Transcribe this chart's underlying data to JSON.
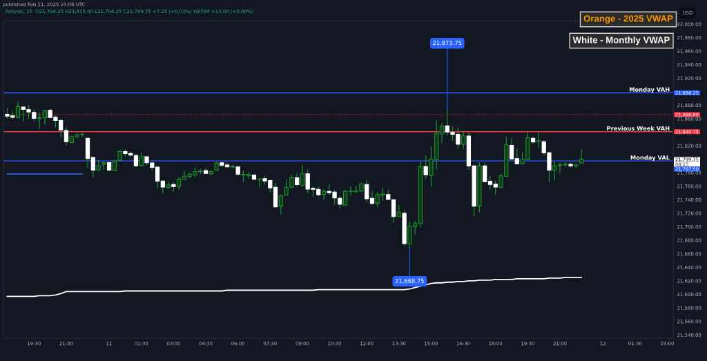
{
  "chart_data": {
    "type": "candlestick",
    "categories": [
      null,
      null,
      null,
      null,
      null,
      "19:30",
      null,
      null,
      null,
      null,
      null,
      "21:00",
      null,
      null,
      null,
      null,
      null,
      null,
      null,
      "11",
      null,
      null,
      null,
      null,
      null,
      "01:30",
      null,
      null,
      null,
      null,
      null,
      "03:00",
      null,
      null,
      null,
      null,
      null,
      "04:30",
      null,
      null,
      null,
      null,
      null,
      "06:00",
      null,
      null,
      null,
      null,
      null,
      "07:30",
      null,
      null,
      null,
      null,
      null,
      "09:00",
      null,
      null,
      null,
      null,
      null,
      "10:30",
      null,
      null,
      null,
      null,
      null,
      "12:00",
      null,
      null,
      null,
      null,
      null,
      "13:30",
      null,
      null,
      null,
      null,
      null,
      "15:00",
      null,
      null,
      null,
      null,
      null,
      "16:30",
      null,
      null,
      null,
      null,
      null,
      "18:00",
      null,
      null,
      null,
      null,
      null,
      "19:30",
      null,
      null,
      null,
      null,
      null,
      "21:00",
      null,
      null,
      null,
      null,
      null,
      null,
      null,
      "12",
      null,
      null,
      null,
      null,
      null,
      "01:30",
      null,
      null,
      null,
      null,
      null,
      "03:00"
    ],
    "ohlc": [
      [
        21866.6,
        21876.1,
        21860.1,
        21863.8
      ],
      [
        21864.2,
        21871.0,
        21859.0,
        21862.1
      ],
      [
        21861.8,
        21885.4,
        21861.0,
        21877.9
      ],
      [
        21877.2,
        21877.8,
        21855.6,
        21873.8
      ],
      [
        21873.4,
        21880.6,
        21860.1,
        21870.0
      ],
      [
        21869.3,
        21873.8,
        21856.3,
        21860.4
      ],
      [
        21860.4,
        21869.3,
        21844.7,
        21861.4
      ],
      [
        21861.4,
        21872.7,
        21851.5,
        21872.0
      ],
      [
        21872.4,
        21874.4,
        21861.0,
        21861.8
      ],
      [
        21862.1,
        21864.9,
        21847.1,
        21857.3
      ],
      [
        21857.3,
        21860.1,
        21832.4,
        21843.0
      ],
      [
        21842.6,
        21847.1,
        21820.7,
        21825.9
      ],
      [
        21824.8,
        21835.1,
        21823.8,
        21833.4
      ],
      [
        21833.1,
        21838.5,
        21831.0,
        21836.1
      ],
      [
        21836.5,
        21839.2,
        21833.4,
        21837.0
      ],
      [
        21831.0,
        21831.5,
        21787.2,
        21800.9
      ],
      [
        21802.6,
        21803.0,
        21772.9,
        21783.8
      ],
      [
        21784.2,
        21799.2,
        21783.0,
        21790.0
      ],
      [
        21792.4,
        21797.5,
        21784.5,
        21794.7
      ],
      [
        21795.1,
        21795.8,
        21782.1,
        21783.8
      ],
      [
        21783.1,
        21799.9,
        21783.0,
        21797.5
      ],
      [
        21798.2,
        21812.2,
        21797.0,
        21811.5
      ],
      [
        21811.2,
        21815.3,
        21804.3,
        21808.4
      ],
      [
        21808.4,
        21811.2,
        21802.6,
        21806.0
      ],
      [
        21805.4,
        21807.8,
        21788.3,
        21790.3
      ],
      [
        21790.3,
        21809.5,
        21789.0,
        21804.0
      ],
      [
        21803.6,
        21804.3,
        21790.7,
        21794.8
      ],
      [
        21794.4,
        21795.8,
        21783.1,
        21787.9
      ],
      [
        21788.3,
        21788.9,
        21756.5,
        21767.4
      ],
      [
        21767.7,
        21768.4,
        21749.6,
        21758.8
      ],
      [
        21758.1,
        21766.4,
        21756.5,
        21761.9
      ],
      [
        21762.6,
        21765.7,
        21752.0,
        21759.5
      ],
      [
        21759.9,
        21773.9,
        21754.7,
        21770.1
      ],
      [
        21769.8,
        21782.8,
        21769.1,
        21774.9
      ],
      [
        21774.2,
        21779.4,
        21772.5,
        21777.7
      ],
      [
        21776.6,
        21787.6,
        21773.2,
        21781.8
      ],
      [
        21781.8,
        21785.5,
        21778.0,
        21782.5
      ],
      [
        21783.1,
        21787.2,
        21778.7,
        21779.0
      ],
      [
        21778.3,
        21783.5,
        21777.0,
        21781.8
      ],
      [
        21783.5,
        21795.8,
        21783.0,
        21794.1
      ],
      [
        21794.7,
        21795.4,
        21788.3,
        21791.0
      ],
      [
        21791.4,
        21795.1,
        21787.9,
        21788.6
      ],
      [
        21788.3,
        21791.4,
        21786.6,
        21789.3
      ],
      [
        21788.6,
        21789.0,
        21776.3,
        21777.7
      ],
      [
        21776.6,
        21783.1,
        21766.0,
        21777.7
      ],
      [
        21775.3,
        21781.1,
        21771.9,
        21777.7
      ],
      [
        21776.6,
        21777.3,
        21769.8,
        21770.2
      ],
      [
        21770.2,
        21771.9,
        21758.2,
        21770.8
      ],
      [
        21771.2,
        21776.0,
        21762.3,
        21767.8
      ],
      [
        21768.4,
        21770.2,
        21750.7,
        21757.5
      ],
      [
        21758.5,
        21765.0,
        21728.4,
        21729.5
      ],
      [
        21730.8,
        21747.9,
        21718.5,
        21745.9
      ],
      [
        21746.9,
        21770.2,
        21746.9,
        21758.5
      ],
      [
        21758.5,
        21777.0,
        21756.5,
        21772.5
      ],
      [
        21772.5,
        21779.7,
        21759.2,
        21762.3
      ],
      [
        21761.6,
        21791.4,
        21759.2,
        21778.4
      ],
      [
        21778.4,
        21784.5,
        21749.6,
        21755.8
      ],
      [
        21756.8,
        21759.9,
        21743.8,
        21755.4
      ],
      [
        21755.4,
        21759.9,
        21745.2,
        21747.2
      ],
      [
        21747.9,
        21755.4,
        21739.4,
        21752.7
      ],
      [
        21752.4,
        21763.0,
        21747.6,
        21750.3
      ],
      [
        21751.3,
        21754.1,
        21732.5,
        21742.8
      ],
      [
        21742.1,
        21745.5,
        21727.4,
        21733.2
      ],
      [
        21731.8,
        21754.1,
        21731.8,
        21752.4
      ],
      [
        21752.4,
        21759.9,
        21746.2,
        21753.0
      ],
      [
        21752.4,
        21760.2,
        21749.3,
        21753.0
      ],
      [
        21753.0,
        21765.0,
        21752.0,
        21763.3
      ],
      [
        21762.6,
        21769.1,
        21736.6,
        21741.4
      ],
      [
        21742.1,
        21753.0,
        21731.8,
        21734.6
      ],
      [
        21734.9,
        21750.3,
        21728.8,
        21747.6
      ],
      [
        21746.9,
        21758.2,
        21738.3,
        21748.6
      ],
      [
        21747.6,
        21754.1,
        21740.1,
        21740.4
      ],
      [
        21740.1,
        21740.4,
        21706.2,
        21715.1
      ],
      [
        21715.1,
        21732.2,
        21714.7,
        21721.2
      ],
      [
        21719.9,
        21723.3,
        21672.0,
        21675.1
      ],
      [
        21674.4,
        21708.9,
        21668.75,
        21701.1
      ],
      [
        21700.4,
        21708.9,
        21688.4,
        21704.8
      ],
      [
        21704.8,
        21796.5,
        21700.0,
        21789.0
      ],
      [
        21789.0,
        21805.4,
        21771.2,
        21777.0
      ],
      [
        21776.0,
        21819.1,
        21759.9,
        21799.9
      ],
      [
        21799.5,
        21857.3,
        21784.5,
        21837.8
      ],
      [
        21837.5,
        21853.9,
        21823.8,
        21849.1
      ],
      [
        21849.5,
        21873.75,
        21835.1,
        21840.2
      ],
      [
        21839.6,
        21848.8,
        21827.2,
        21836.8
      ],
      [
        21836.8,
        21847.1,
        21816.3,
        21822.1
      ],
      [
        21822.1,
        21842.0,
        21814.6,
        21834.4
      ],
      [
        21834.4,
        21839.2,
        21784.5,
        21790.0
      ],
      [
        21790.0,
        21790.7,
        21715.4,
        21730.4
      ],
      [
        21730.4,
        21795.8,
        21721.6,
        21790.0
      ],
      [
        21790.0,
        21795.1,
        21766.7,
        21766.7
      ],
      [
        21767.4,
        21775.3,
        21754.7,
        21762.6
      ],
      [
        21763.0,
        21768.4,
        21746.9,
        21758.8
      ],
      [
        21758.1,
        21778.7,
        21758.1,
        21775.3
      ],
      [
        21774.6,
        21833.4,
        21774.6,
        21821.4
      ],
      [
        21820.4,
        21831.7,
        21799.9,
        21800.2
      ],
      [
        21800.9,
        21816.3,
        21792.4,
        21793.1
      ],
      [
        21793.4,
        21810.1,
        21792.4,
        21799.9
      ],
      [
        21799.5,
        21839.2,
        21799.0,
        21831.7
      ],
      [
        21831.0,
        21833.4,
        21823.1,
        21825.5
      ],
      [
        21826.6,
        21839.6,
        21816.3,
        21827.3
      ],
      [
        21825.9,
        21828.3,
        21806.0,
        21809.5
      ],
      [
        21809.5,
        21811.2,
        21765.7,
        21783.8
      ],
      [
        21783.8,
        21796.5,
        21769.1,
        21790.0
      ],
      [
        21790.7,
        21795.1,
        21778.7,
        21791.7
      ],
      [
        21791.7,
        21795.1,
        21788.9,
        21792.7
      ],
      [
        21792.4,
        21794.4,
        21787.9,
        21790.0
      ],
      [
        21789.6,
        21793.7,
        21787.2,
        21791.7
      ],
      [
        21794.25,
        21815.0,
        21794.25,
        21799.75
      ],
      null,
      null,
      null,
      null,
      null,
      null,
      null,
      null,
      null,
      null,
      null,
      null,
      null,
      null,
      null,
      null
    ],
    "series": [
      {
        "type": "line",
        "color": "#ffffff",
        "values": [
          21597,
          21597,
          21597,
          21597,
          21597,
          21597,
          21598,
          21598,
          21598,
          21599,
          21601,
          21604,
          21604,
          21604,
          21604,
          21604,
          21604,
          21604,
          21604,
          21604,
          21604,
          21604,
          21605,
          21605,
          21605,
          21605,
          21605,
          21605,
          21605,
          21605,
          21605,
          21605,
          21605,
          21605,
          21605,
          21605,
          21605,
          21605,
          21605,
          21605,
          21605,
          21606,
          21606,
          21606,
          21606,
          21606,
          21606,
          21606,
          21606,
          21606,
          21606,
          21606,
          21606,
          21606,
          21606,
          21606,
          21606,
          21606,
          21607,
          21607,
          21607,
          21607,
          21607,
          21607,
          21607,
          21607,
          21607,
          21607,
          21607,
          21607,
          21607,
          21607,
          21607,
          21607,
          21607,
          21608,
          21610,
          21612,
          21614,
          21616,
          21617,
          21617,
          21618,
          21618,
          21619,
          21619,
          21620,
          21620,
          21621,
          21621,
          21621,
          21622,
          21622,
          21622,
          21622,
          21623,
          21623,
          21623,
          21623,
          21623,
          21623,
          21624,
          21624,
          21624,
          21625,
          21625,
          21625,
          21625,
          null,
          null,
          null,
          null,
          null,
          null,
          null,
          null,
          null,
          null,
          null,
          null,
          null,
          null,
          null,
          null
        ]
      },
      {
        "type": "line",
        "color": "#2962ff",
        "values": [
          21778,
          21778,
          21778,
          21778,
          21778,
          21778,
          21778,
          21778,
          21778,
          21778,
          21778,
          21778,
          21778,
          21778,
          21778,
          null,
          null,
          null,
          null,
          null,
          null,
          null,
          null,
          null,
          null,
          null,
          null,
          null,
          null,
          null,
          null,
          null,
          null,
          null,
          null,
          null,
          null,
          null,
          null,
          null,
          null,
          null,
          null,
          null,
          null,
          null,
          null,
          null,
          null,
          null,
          null,
          null,
          null,
          null,
          null,
          null,
          null,
          null,
          null,
          null,
          null,
          null,
          null,
          null,
          null,
          null,
          null,
          null,
          null,
          null,
          null,
          null,
          null,
          null,
          null,
          null,
          null,
          null,
          null,
          null,
          null,
          null,
          null,
          null,
          null,
          null,
          null,
          null,
          null,
          null,
          null,
          null,
          null,
          null,
          null,
          null,
          null,
          null,
          null,
          null,
          null,
          null,
          null,
          null,
          null,
          null,
          null,
          null,
          null,
          null,
          null,
          null,
          null,
          null,
          null,
          null,
          null,
          null,
          null,
          null,
          null,
          null,
          null,
          null
        ]
      }
    ],
    "ref_lines": [
      {
        "axis": "y",
        "value": 21898.25,
        "label": "Monday VAH",
        "color": "#2962ff",
        "line_style": "solid"
      },
      {
        "axis": "y",
        "value": 21866.0,
        "label": null,
        "color": "#f23645",
        "line_style": "dotted"
      },
      {
        "axis": "y",
        "value": 21840.75,
        "label": "Previous Week VAH",
        "color": "#f23645",
        "line_style": "solid"
      },
      {
        "axis": "y",
        "value": 21797.5,
        "label": "Monday VAL",
        "color": "#2962ff",
        "line_style": "solid"
      }
    ],
    "ylim": [
      21535,
      22005
    ],
    "yticks": [
      {
        "value": 21540,
        "label": "21,540.00"
      },
      {
        "value": 21560,
        "label": "21,560.00"
      },
      {
        "value": 21580,
        "label": "21,580.00"
      },
      {
        "value": 21600,
        "label": "21,600.00"
      },
      {
        "value": 21620,
        "label": "21,620.00"
      },
      {
        "value": 21640,
        "label": "21,640.00"
      },
      {
        "value": 21660,
        "label": "21,660.00"
      },
      {
        "value": 21680,
        "label": "21,680.00"
      },
      {
        "value": 21700,
        "label": "21,700.00"
      },
      {
        "value": 21720,
        "label": "21,720.00"
      },
      {
        "value": 21740,
        "label": "21,740.00"
      },
      {
        "value": 21760,
        "label": "21,760.00"
      },
      {
        "value": 21780,
        "label": "21,780.00"
      },
      {
        "value": 21820,
        "label": "21,820.00"
      },
      {
        "value": 21860,
        "label": "21,860.00"
      },
      {
        "value": 21880,
        "label": "21,880.00"
      },
      {
        "value": 21920,
        "label": "21,920.00"
      },
      {
        "value": 21940,
        "label": "21,940.00"
      },
      {
        "value": 21960,
        "label": "21,960.00"
      },
      {
        "value": 21980,
        "label": "21,980.00"
      },
      {
        "value": 22000,
        "label": "22,000.00"
      }
    ],
    "grid": false,
    "legend": false,
    "annotations": [
      "published Feb 11, 2025 23:06 UTC",
      "Futures, 15  O21,794.25 H21,815.00 L21,794.25 C21,799.75 +7.25 (+0.03%) Vol784 +13.00 (+0.06%)",
      "Orange - 2025 VWAP",
      "White - Monthly VWAP",
      "USD",
      "08:15",
      {
        "text": "21,873.75",
        "y": 21873.75
      },
      {
        "text": "21,668.75",
        "y": 21668.75
      },
      "21,898.25",
      "21,866.00",
      "21,840.75",
      "21,797.50",
      "21,799.75"
    ]
  }
}
